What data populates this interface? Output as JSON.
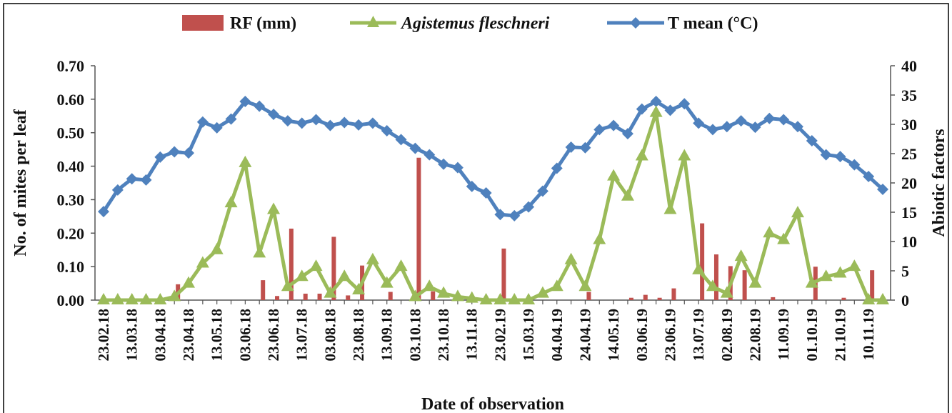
{
  "chart_data": {
    "type": "line",
    "title": "",
    "legend": {
      "placement": "top",
      "entries": [
        {
          "label": "RF (mm)",
          "italic": false,
          "marker": "bar",
          "color": "#c0504d"
        },
        {
          "label": "Agistemus fleschneri",
          "italic": true,
          "marker": "triangle",
          "color": "#9bbb59"
        },
        {
          "label": "T mean (°C)",
          "italic": false,
          "marker": "diamond",
          "color": "#4f81bd"
        }
      ]
    },
    "xlabel": "Date of observation",
    "ylabel_left": "No. of mites per leaf",
    "ylabel_right": "Abiotic factors",
    "y_left_ticks": [
      "0.00",
      "0.10",
      "0.20",
      "0.30",
      "0.40",
      "0.50",
      "0.60",
      "0.70"
    ],
    "y_right_ticks": [
      "0",
      "5",
      "10",
      "15",
      "20",
      "25",
      "30",
      "35",
      "40"
    ],
    "ylim_left": [
      0,
      0.7
    ],
    "ylim_right": [
      0,
      40
    ],
    "grid": false,
    "tick_labels": [
      "23.02.18",
      "13.03.18",
      "03.04.18",
      "23.04.18",
      "13.05.18",
      "03.06.18",
      "23.06.18",
      "13.07.18",
      "03.08.18",
      "23.08.18",
      "13.09.18",
      "03.10.18",
      "23.10.18",
      "13.11.18",
      "23.02.19",
      "15.03.19",
      "04.04.19",
      "24.04.19",
      "14.05.19",
      "03.06.19",
      "23.06.19",
      "13.07.19",
      "02.08.19",
      "22.08.19",
      "11.09.19",
      "01.10.19",
      "21.10.19",
      "10.11.19"
    ],
    "series": [
      {
        "name": "T mean (°C)",
        "axis": "right",
        "color": "#4f81bd",
        "values": [
          15.1,
          18.8,
          20.7,
          20.5,
          24.4,
          25.3,
          25.1,
          30.4,
          29.4,
          30.9,
          33.9,
          33.1,
          31.7,
          30.6,
          30.2,
          30.8,
          29.8,
          30.3,
          29.9,
          30.2,
          28.9,
          27.4,
          25.9,
          24.8,
          23.2,
          22.6,
          19.4,
          18.3,
          14.6,
          14.4,
          15.9,
          18.6,
          22.5,
          26.1,
          26.0,
          29.1,
          29.8,
          28.4,
          32.6,
          33.9,
          32.4,
          33.5,
          30.2,
          29.1,
          29.6,
          30.6,
          29.5,
          31.0,
          30.8,
          29.6,
          27.2,
          24.8,
          24.5,
          23.1,
          21.1,
          18.9
        ]
      },
      {
        "name": "Agistemus fleschneri",
        "axis": "left",
        "color": "#9bbb59",
        "values": [
          0.0,
          0.0,
          0.0,
          0.0,
          0.0,
          0.01,
          0.05,
          0.11,
          0.15,
          0.29,
          0.41,
          0.14,
          0.27,
          0.04,
          0.07,
          0.1,
          0.02,
          0.07,
          0.03,
          0.12,
          0.05,
          0.1,
          0.01,
          0.04,
          0.02,
          0.01,
          0.005,
          0.0,
          0.0,
          0.0,
          0.0,
          0.02,
          0.04,
          0.12,
          0.04,
          0.18,
          0.37,
          0.31,
          0.43,
          0.56,
          0.27,
          0.43,
          0.09,
          0.04,
          0.02,
          0.13,
          0.05,
          0.2,
          0.18,
          0.26,
          0.05,
          0.07,
          0.08,
          0.1,
          0.0,
          0.0
        ]
      },
      {
        "name": "RF (mm)",
        "axis": "right",
        "color": "#c0504d",
        "render": "bar",
        "values": [
          0,
          0,
          0,
          0,
          0,
          2.7,
          0,
          0,
          0,
          0,
          0,
          3.4,
          0.7,
          12.2,
          1.1,
          1.1,
          10.8,
          0.8,
          5.9,
          0,
          1.4,
          0,
          24.3,
          1.5,
          0,
          0,
          0,
          0,
          8.8,
          0,
          0,
          0,
          0,
          0,
          1.4,
          0,
          0,
          0.4,
          0.9,
          0.4,
          2.0,
          0,
          13.1,
          7.8,
          5.8,
          5.1,
          0,
          0.5,
          0,
          0,
          5.7,
          0,
          0.4,
          0,
          5.1,
          0
        ]
      }
    ]
  }
}
